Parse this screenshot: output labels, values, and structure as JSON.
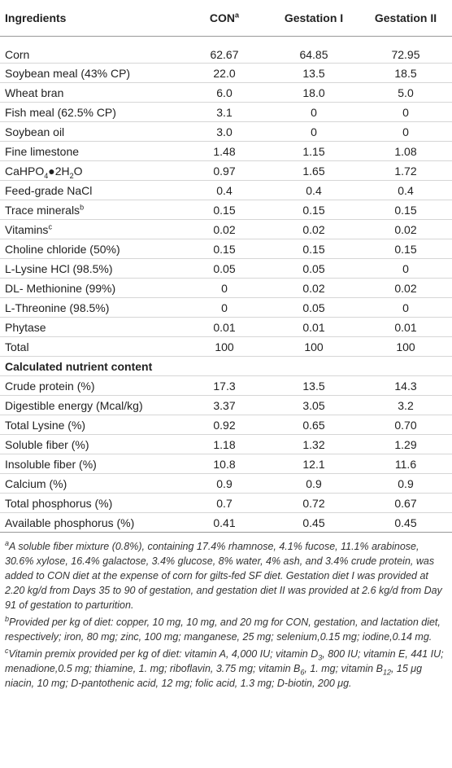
{
  "table": {
    "headers": [
      [
        "Ingredients"
      ],
      [
        "CON",
        {
          "sup": "a"
        }
      ],
      [
        "Gestation I"
      ],
      [
        "Gestation II"
      ]
    ],
    "rows": [
      {
        "label": [
          "Corn"
        ],
        "values": [
          "62.67",
          "64.85",
          "72.95"
        ]
      },
      {
        "label": [
          "Soybean meal (43% CP)"
        ],
        "values": [
          "22.0",
          "13.5",
          "18.5"
        ]
      },
      {
        "label": [
          "Wheat bran"
        ],
        "values": [
          "6.0",
          "18.0",
          "5.0"
        ]
      },
      {
        "label": [
          "Fish meal (62.5% CP)"
        ],
        "values": [
          "3.1",
          "0",
          "0"
        ]
      },
      {
        "label": [
          "Soybean oil"
        ],
        "values": [
          "3.0",
          "0",
          "0"
        ]
      },
      {
        "label": [
          "Fine limestone"
        ],
        "values": [
          "1.48",
          "1.15",
          "1.08"
        ]
      },
      {
        "label": [
          "CaHPO",
          {
            "sub": "4"
          },
          "●2H",
          {
            "sub": "2"
          },
          "O"
        ],
        "values": [
          "0.97",
          "1.65",
          "1.72"
        ]
      },
      {
        "label": [
          "Feed-grade NaCl"
        ],
        "values": [
          "0.4",
          "0.4",
          "0.4"
        ]
      },
      {
        "label": [
          "Trace minerals",
          {
            "sup": "b"
          }
        ],
        "values": [
          "0.15",
          "0.15",
          "0.15"
        ]
      },
      {
        "label": [
          "Vitamins",
          {
            "sup": "c"
          }
        ],
        "values": [
          "0.02",
          "0.02",
          "0.02"
        ]
      },
      {
        "label": [
          "Choline chloride (50%)"
        ],
        "values": [
          "0.15",
          "0.15",
          "0.15"
        ]
      },
      {
        "label": [
          "L-Lysine HCl (98.5%)"
        ],
        "values": [
          "0.05",
          "0.05",
          "0"
        ]
      },
      {
        "label": [
          "DL- Methionine (99%)"
        ],
        "values": [
          "0",
          "0.02",
          "0.02"
        ]
      },
      {
        "label": [
          "L-Threonine (98.5%)"
        ],
        "values": [
          "0",
          "0.05",
          "0"
        ]
      },
      {
        "label": [
          "Phytase"
        ],
        "values": [
          "0.01",
          "0.01",
          "0.01"
        ]
      },
      {
        "label": [
          "Total"
        ],
        "values": [
          "100",
          "100",
          "100"
        ]
      },
      {
        "heading": "Calculated nutrient content"
      },
      {
        "label": [
          "Crude protein (%)"
        ],
        "values": [
          "17.3",
          "13.5",
          "14.3"
        ]
      },
      {
        "label": [
          "Digestible energy (Mcal/kg)"
        ],
        "values": [
          "3.37",
          "3.05",
          "3.2"
        ]
      },
      {
        "label": [
          "Total Lysine (%)"
        ],
        "values": [
          "0.92",
          "0.65",
          "0.70"
        ]
      },
      {
        "label": [
          "Soluble fiber (%)"
        ],
        "values": [
          "1.18",
          "1.32",
          "1.29"
        ]
      },
      {
        "label": [
          "Insoluble fiber (%)"
        ],
        "values": [
          "10.8",
          "12.1",
          "11.6"
        ]
      },
      {
        "label": [
          "Calcium (%)"
        ],
        "values": [
          "0.9",
          "0.9",
          "0.9"
        ]
      },
      {
        "label": [
          "Total phosphorus (%)"
        ],
        "values": [
          "0.7",
          "0.72",
          "0.67"
        ]
      },
      {
        "label": [
          "Available phosphorus (%)"
        ],
        "values": [
          "0.41",
          "0.45",
          "0.45"
        ]
      }
    ],
    "footnotes": [
      [
        {
          "sup": "a"
        },
        "A soluble fiber mixture (0.8%), containing 17.4% rhamnose, 4.1% fucose, 11.1% arabinose, 30.6% xylose, 16.4% galactose, 3.4% glucose, 8% water, 4% ash, and 3.4% crude protein, was added to CON diet at the expense of corn for gilts-fed SF diet. Gestation diet I was provided at 2.20 kg/d from Days 35 to 90 of gestation, and gestation diet II was provided at 2.6 kg/d from Day 91 of gestation to parturition."
      ],
      [
        {
          "sup": "b"
        },
        "Provided per kg of diet: copper, 10 mg, 10 mg, and 20 mg for CON, gestation, and lactation diet, respectively; iron, 80 mg; zinc, 100 mg; manganese, 25 mg; selenium,0.15 mg; iodine,0.14 mg."
      ],
      [
        {
          "sup": "c"
        },
        "Vitamin premix provided per kg of diet: vitamin A, 4,000 IU; vitamin D",
        {
          "sub": "3"
        },
        ", 800 IU; vitamin E, 441 IU; menadione,0.5 mg; thiamine, 1. mg; riboflavin, 3.75 mg; vitamin B",
        {
          "sub": "6"
        },
        ", 1. mg; vitamin B",
        {
          "sub": "12"
        },
        ", 15 μg niacin, 10 mg; D-pantothenic acid, 12 mg; folic acid, 1.3 mg; D-biotin, 200 μg."
      ]
    ]
  }
}
